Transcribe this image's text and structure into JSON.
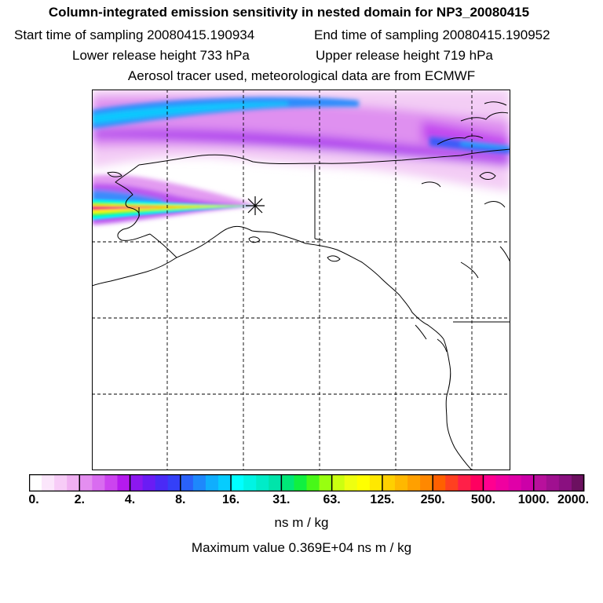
{
  "header": {
    "title": "Column-integrated emission sensitivity in nested domain for NP3_20080415",
    "start_label": "Start time of sampling 20080415.190934",
    "end_label": "End time of sampling 20080415.190952",
    "lower_label": "Lower release height  733 hPa",
    "upper_label": "Upper release height  719 hPa",
    "tracer_label": "Aerosol tracer used, meteorological data are from ECMWF"
  },
  "colorbar": {
    "labels": [
      "0.",
      "2.",
      "4.",
      "8.",
      "16.",
      "31.",
      "63.",
      "125.",
      "250.",
      "500.",
      "1000.",
      "2000."
    ],
    "colors": [
      "#ffffff",
      "#fbe6fb",
      "#f7ccf7",
      "#f0b0f2",
      "#e48ef0",
      "#d96cf0",
      "#cc44ef",
      "#b51aee",
      "#8c18f0",
      "#6a1cf4",
      "#4a2af6",
      "#3440f8",
      "#2a62fa",
      "#1e88fc",
      "#10aefd",
      "#06ccfe",
      "#00ffff",
      "#00f4e4",
      "#00ecc8",
      "#00e4aa",
      "#00e878",
      "#10f040",
      "#48f818",
      "#98ff10",
      "#ccff10",
      "#eeff10",
      "#ffff00",
      "#ffe800",
      "#ffd000",
      "#ffb800",
      "#ffa000",
      "#ff8800",
      "#ff6000",
      "#ff4020",
      "#ff2048",
      "#ff0060",
      "#ff0090",
      "#f000a0",
      "#e000a8",
      "#cc00a8",
      "#b8109c",
      "#a01090",
      "#8a1080",
      "#6c1060"
    ],
    "units": "ns m / kg"
  },
  "footer": {
    "max_label": "Maximum value  0.369E+04 ns m / kg"
  },
  "map": {
    "frame_color": "#000000",
    "grid_style": "dashed",
    "release_marker": "asterisk"
  }
}
